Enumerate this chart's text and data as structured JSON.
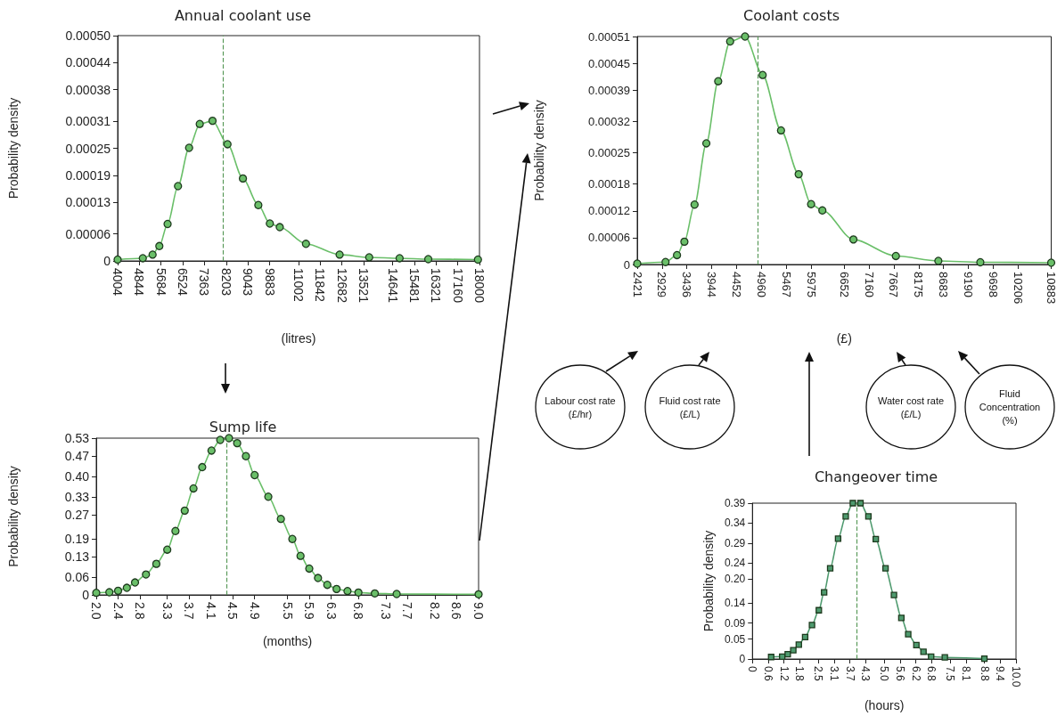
{
  "chart_data": [
    {
      "type": "line",
      "title": "Annual coolant use",
      "xlabel": "(litres)",
      "ylabel": "Probability density",
      "marker": "circle",
      "xlim": [
        4004,
        18000
      ],
      "xticks": [
        4004,
        4844,
        5684,
        6524,
        7363,
        8203,
        9043,
        9883,
        11002,
        11842,
        12682,
        13521,
        14641,
        15481,
        16321,
        17160,
        18000
      ],
      "ylim": [
        0,
        0.0005
      ],
      "yticks": [
        0,
        {
          "value": 6e-05,
          "label": "0.00006"
        },
        0.00013,
        0.00019,
        0.00025,
        0.00031,
        0.00038,
        0.00044,
        {
          "value": 0.0005,
          "label": "0.00050"
        }
      ],
      "ref_lines": [
        {
          "axis": "x",
          "value": 8085,
          "color": "#5a9a5a",
          "line_style": "dashed"
        }
      ],
      "series": [
        {
          "color": "#6abf69",
          "x": [
            4004,
            4978,
            5356,
            5617,
            5936,
            6339,
            6768,
            7180,
            7674,
            8253,
            8850,
            9446,
            9891,
            10275,
            11288,
            12590,
            13734,
            14910,
            16019,
            17941
          ],
          "values": [
            3e-06,
            6e-06,
            1.4e-05,
            3.3e-05,
            8.2e-05,
            0.000166,
            0.000251,
            0.000304,
            0.000311,
            0.000259,
            0.000183,
            0.000124,
            8.3e-05,
            7.5e-05,
            3.8e-05,
            1.4e-05,
            8e-06,
            6e-06,
            4e-06,
            3e-06
          ]
        }
      ]
    },
    {
      "type": "line",
      "title": "Coolant costs",
      "xlabel": "(£)",
      "ylabel": "Probability density",
      "marker": "circle",
      "xlim": [
        2421,
        10883
      ],
      "xticks": [
        2421,
        2929,
        3436,
        3944,
        4452,
        4960,
        5467,
        5975,
        6652,
        7160,
        7667,
        8175,
        8683,
        9190,
        9698,
        10206,
        10883
      ],
      "ylim": [
        0,
        0.00051
      ],
      "yticks": [
        0,
        {
          "value": 6e-05,
          "label": "0.00006"
        },
        0.00012,
        0.00018,
        0.00025,
        0.00032,
        0.00039,
        0.00045,
        0.00051
      ],
      "ref_lines": [
        {
          "axis": "x",
          "value": 4884,
          "color": "#5a9a5a",
          "line_style": "dashed"
        }
      ],
      "annotations": [
        "Labour cost rate\n(£/hr)",
        "Fluid cost rate\n(£/L)",
        "Water cost rate\n(£/L)",
        "Fluid\nConcentration\n(%)"
      ],
      "series": [
        {
          "color": "#6abf69",
          "x": [
            2421,
            3000,
            3234,
            3385,
            3593,
            3834,
            4076,
            4320,
            4625,
            4985,
            5360,
            5721,
            5975,
            6205,
            6840,
            7708,
            8576,
            9434,
            10883
          ],
          "values": [
            2e-06,
            5.5e-06,
            2.1e-05,
            5.1e-05,
            0.000134,
            0.000271,
            0.00041,
            0.000499,
            0.00051,
            0.000424,
            0.0003,
            0.000202,
            0.000135,
            0.000121,
            5.6e-05,
            1.9e-05,
            8e-06,
            5e-06,
            4e-06
          ]
        }
      ]
    },
    {
      "type": "line",
      "title": "Sump life",
      "xlabel": "(months)",
      "ylabel": "Probability density",
      "marker": "circle",
      "xlim": [
        2,
        9
      ],
      "xticks": [
        {
          "value": 2,
          "label": "2.0"
        },
        2.4,
        2.8,
        3.3,
        3.7,
        4.1,
        4.5,
        4.9,
        5.5,
        5.9,
        6.3,
        6.8,
        7.3,
        7.7,
        8.2,
        8.6,
        {
          "value": 9,
          "label": "9.0"
        }
      ],
      "ylim": [
        0,
        0.53
      ],
      "yticks": [
        0,
        0.06,
        0.13,
        0.19,
        0.27,
        0.33,
        {
          "value": 0.4,
          "label": "0.40"
        },
        0.47,
        0.53
      ],
      "ref_lines": [
        {
          "axis": "x",
          "value": 4.39,
          "color": "#5a9a5a",
          "line_style": "dashed"
        }
      ],
      "series": [
        {
          "color": "#6abf69",
          "x": [
            2.0,
            2.24,
            2.4,
            2.56,
            2.71,
            2.91,
            3.1,
            3.3,
            3.45,
            3.62,
            3.78,
            3.94,
            4.11,
            4.27,
            4.43,
            4.58,
            4.74,
            4.9,
            5.15,
            5.38,
            5.59,
            5.74,
            5.9,
            6.06,
            6.23,
            6.4,
            6.6,
            6.8,
            7.1,
            7.5,
            9.0
          ],
          "values": [
            0.007,
            0.009,
            0.014,
            0.024,
            0.042,
            0.069,
            0.105,
            0.153,
            0.216,
            0.285,
            0.36,
            0.432,
            0.488,
            0.524,
            0.53,
            0.513,
            0.469,
            0.405,
            0.332,
            0.257,
            0.189,
            0.132,
            0.089,
            0.057,
            0.034,
            0.02,
            0.013,
            0.008,
            0.005,
            0.003,
            0.002
          ]
        }
      ]
    },
    {
      "type": "line",
      "title": "Changeover time",
      "xlabel": "(hours)",
      "ylabel": "Probability density",
      "marker": "square",
      "xlim": [
        0,
        10
      ],
      "xticks": [
        0,
        0.6,
        1.2,
        1.8,
        2.5,
        3.1,
        3.7,
        4.3,
        {
          "value": 5,
          "label": "5.0"
        },
        5.6,
        6.2,
        6.8,
        7.5,
        8.1,
        8.8,
        9.4,
        {
          "value": 10,
          "label": "10.0"
        }
      ],
      "ylim": [
        0,
        0.39
      ],
      "yticks": [
        0,
        0.05,
        0.09,
        0.14,
        {
          "value": 0.2,
          "label": "0.20"
        },
        0.24,
        0.29,
        0.34,
        0.39
      ],
      "ref_lines": [
        {
          "axis": "x",
          "value": 3.96,
          "color": "#5a9a5a",
          "line_style": "dashed"
        }
      ],
      "series": [
        {
          "color": "#4e9a6e",
          "x": [
            0.71,
            1.13,
            1.34,
            1.55,
            1.76,
            2.0,
            2.26,
            2.52,
            2.72,
            2.95,
            3.25,
            3.54,
            3.81,
            4.1,
            4.4,
            4.68,
            5.05,
            5.37,
            5.65,
            5.91,
            6.22,
            6.49,
            6.78,
            7.3,
            8.8
          ],
          "values": [
            0.005,
            0.006,
            0.012,
            0.022,
            0.036,
            0.055,
            0.085,
            0.122,
            0.167,
            0.227,
            0.301,
            0.357,
            0.39,
            0.39,
            0.357,
            0.3,
            0.227,
            0.16,
            0.103,
            0.062,
            0.035,
            0.018,
            0.006,
            0.004,
            0.001
          ]
        }
      ]
    }
  ]
}
